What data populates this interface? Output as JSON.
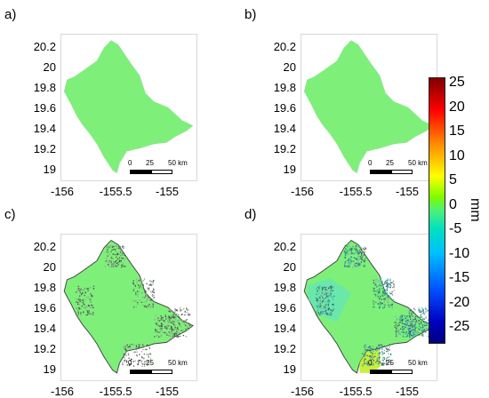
{
  "panels": [
    {
      "label": "a)"
    },
    {
      "label": "b)"
    },
    {
      "label": "c)"
    },
    {
      "label": "d)"
    }
  ],
  "y_ticks": [
    "20.2",
    "20",
    "19.8",
    "19.6",
    "19.4",
    "19.2",
    "19"
  ],
  "x_ticks": [
    "-156",
    "-155.5",
    "-155"
  ],
  "scalebar": {
    "zero": "0",
    "mid": "25",
    "end": "50 km"
  },
  "colorbar": {
    "ticks": [
      "25",
      "20",
      "15",
      "10",
      "5",
      "0",
      "-5",
      "-10",
      "-15",
      "-20",
      "-25"
    ],
    "unit": "mm",
    "colors": [
      "#7f0000",
      "#ff0000",
      "#ff8c00",
      "#ffff00",
      "#7cfc00",
      "#00e0c0",
      "#00bfff",
      "#0050ff",
      "#00007f"
    ]
  }
}
